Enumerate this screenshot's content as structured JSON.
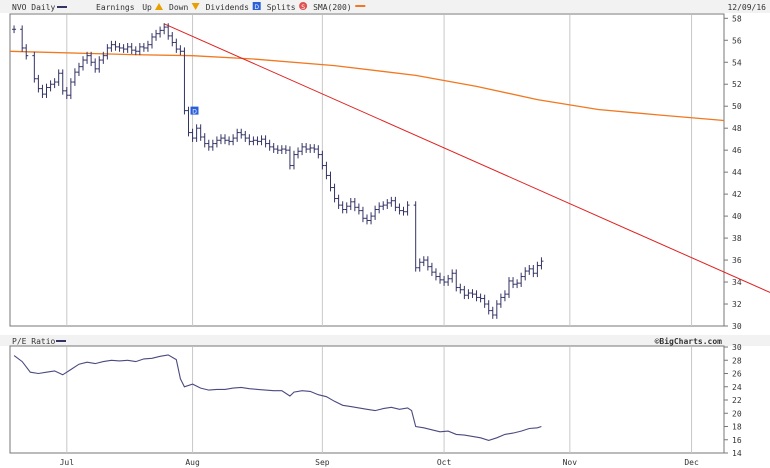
{
  "chart_data": [
    {
      "type": "ohlc",
      "symbol_label": "NVO Daily",
      "legend": [
        {
          "label": "Earnings",
          "marker": "bar-icon",
          "color": "#333366"
        },
        {
          "label": "Up",
          "marker": "triangle-up-icon",
          "color": "#e8a000"
        },
        {
          "label": "Down",
          "marker": "triangle-down-icon",
          "color": "#e8a000"
        },
        {
          "label": "Dividends",
          "marker": "dividend-badge-icon",
          "badge": "D",
          "color": "#2b5fd9"
        },
        {
          "label": "Splits",
          "marker": "split-badge-icon",
          "badge": "S",
          "color": "#e05050"
        },
        {
          "label": "SMA(200)",
          "marker": "line-icon",
          "color": "#f07820"
        }
      ],
      "date_label": "12/09/16",
      "x_labels": [
        {
          "label": "Jul",
          "day": 14
        },
        {
          "label": "Aug",
          "day": 45
        },
        {
          "label": "Sep",
          "day": 77
        },
        {
          "label": "Oct",
          "day": 107
        },
        {
          "label": "Nov",
          "day": 138
        },
        {
          "label": "Dec",
          "day": 168
        }
      ],
      "x_range": [
        0,
        176
      ],
      "y_ticks": [
        30,
        32,
        34,
        36,
        38,
        40,
        42,
        44,
        46,
        48,
        50,
        52,
        54,
        56,
        58
      ],
      "ylim": [
        30,
        58.3
      ],
      "price": [
        [
          1,
          57.0
        ],
        [
          3,
          55.3
        ],
        [
          4,
          54.6
        ],
        [
          6,
          52.5
        ],
        [
          7,
          51.6
        ],
        [
          8,
          51.1
        ],
        [
          9,
          51.7
        ],
        [
          10,
          52.0
        ],
        [
          11,
          52.2
        ],
        [
          12,
          53.0
        ],
        [
          13,
          51.4
        ],
        [
          14,
          51.0
        ],
        [
          15,
          52.2
        ],
        [
          16,
          53.1
        ],
        [
          17,
          53.6
        ],
        [
          18,
          54.2
        ],
        [
          19,
          54.6
        ],
        [
          20,
          54.0
        ],
        [
          21,
          53.4
        ],
        [
          22,
          54.2
        ],
        [
          23,
          54.6
        ],
        [
          24,
          55.3
        ],
        [
          25,
          55.6
        ],
        [
          26,
          55.4
        ],
        [
          27,
          55.3
        ],
        [
          28,
          55.2
        ],
        [
          29,
          55.4
        ],
        [
          30,
          55.1
        ],
        [
          31,
          55.0
        ],
        [
          32,
          55.4
        ],
        [
          33,
          55.3
        ],
        [
          34,
          55.6
        ],
        [
          35,
          56.3
        ],
        [
          36,
          56.6
        ],
        [
          37,
          56.9
        ],
        [
          38,
          57.2
        ],
        [
          39,
          56.4
        ],
        [
          40,
          55.8
        ],
        [
          41,
          55.2
        ],
        [
          42,
          55.0
        ],
        [
          43,
          49.6
        ],
        [
          44,
          47.6
        ],
        [
          45,
          47.1
        ],
        [
          46,
          48.0
        ],
        [
          47,
          47.2
        ],
        [
          48,
          46.6
        ],
        [
          49,
          46.3
        ],
        [
          50,
          46.6
        ],
        [
          51,
          46.9
        ],
        [
          52,
          47.1
        ],
        [
          53,
          46.9
        ],
        [
          54,
          46.8
        ],
        [
          55,
          47.1
        ],
        [
          56,
          47.6
        ],
        [
          57,
          47.4
        ],
        [
          58,
          47.1
        ],
        [
          59,
          46.8
        ],
        [
          60,
          46.9
        ],
        [
          61,
          46.8
        ],
        [
          62,
          47.0
        ],
        [
          63,
          46.6
        ],
        [
          64,
          46.3
        ],
        [
          65,
          46.1
        ],
        [
          66,
          46.0
        ],
        [
          67,
          46.1
        ],
        [
          68,
          46.0
        ],
        [
          69,
          44.6
        ],
        [
          70,
          45.6
        ],
        [
          71,
          45.9
        ],
        [
          72,
          46.3
        ],
        [
          73,
          46.1
        ],
        [
          74,
          46.2
        ],
        [
          75,
          46.1
        ],
        [
          76,
          45.6
        ],
        [
          77,
          44.6
        ],
        [
          78,
          43.7
        ],
        [
          79,
          42.6
        ],
        [
          80,
          41.6
        ],
        [
          81,
          41.0
        ],
        [
          82,
          40.6
        ],
        [
          83,
          40.9
        ],
        [
          84,
          41.3
        ],
        [
          85,
          40.8
        ],
        [
          86,
          40.5
        ],
        [
          87,
          39.8
        ],
        [
          88,
          39.6
        ],
        [
          89,
          40.0
        ],
        [
          90,
          40.6
        ],
        [
          91,
          40.9
        ],
        [
          92,
          41.0
        ],
        [
          93,
          41.2
        ],
        [
          94,
          41.4
        ],
        [
          95,
          40.8
        ],
        [
          96,
          40.5
        ],
        [
          97,
          40.4
        ],
        [
          98,
          41.0
        ],
        [
          100,
          35.3
        ],
        [
          101,
          35.8
        ],
        [
          102,
          36.0
        ],
        [
          103,
          35.4
        ],
        [
          104,
          34.9
        ],
        [
          105,
          34.5
        ],
        [
          106,
          34.2
        ],
        [
          107,
          34.0
        ],
        [
          108,
          34.3
        ],
        [
          109,
          34.8
        ],
        [
          110,
          33.5
        ],
        [
          111,
          33.3
        ],
        [
          112,
          32.8
        ],
        [
          113,
          33.0
        ],
        [
          114,
          32.9
        ],
        [
          115,
          32.6
        ],
        [
          116,
          32.5
        ],
        [
          117,
          32.0
        ],
        [
          118,
          31.4
        ],
        [
          119,
          31.0
        ],
        [
          120,
          32.0
        ],
        [
          121,
          32.6
        ],
        [
          122,
          32.9
        ],
        [
          123,
          34.1
        ],
        [
          124,
          33.8
        ],
        [
          125,
          33.9
        ],
        [
          126,
          34.5
        ],
        [
          127,
          35.0
        ],
        [
          128,
          35.2
        ],
        [
          129,
          34.8
        ],
        [
          130,
          35.5
        ],
        [
          131,
          35.9
        ]
      ],
      "sma200": [
        [
          0,
          55.0
        ],
        [
          30,
          54.7
        ],
        [
          45,
          54.6
        ],
        [
          60,
          54.3
        ],
        [
          80,
          53.7
        ],
        [
          100,
          52.8
        ],
        [
          115,
          51.8
        ],
        [
          130,
          50.6
        ],
        [
          145,
          49.7
        ],
        [
          160,
          49.2
        ],
        [
          176,
          48.7
        ]
      ],
      "trendline": [
        [
          38,
          57.5
        ],
        [
          176,
          33.6
        ]
      ],
      "dividend_marker": {
        "day": 44,
        "label": "D"
      }
    },
    {
      "type": "line",
      "label": "P/E Ratio",
      "brand": "©BigCharts.com",
      "y_ticks": [
        14,
        16,
        18,
        20,
        22,
        24,
        26,
        28,
        30
      ],
      "ylim": [
        14,
        30
      ],
      "values": [
        [
          1,
          28.7
        ],
        [
          3,
          27.8
        ],
        [
          5,
          26.2
        ],
        [
          7,
          26.0
        ],
        [
          9,
          26.2
        ],
        [
          11,
          26.4
        ],
        [
          13,
          25.8
        ],
        [
          15,
          26.6
        ],
        [
          17,
          27.4
        ],
        [
          19,
          27.7
        ],
        [
          21,
          27.5
        ],
        [
          23,
          27.8
        ],
        [
          25,
          28.0
        ],
        [
          27,
          27.9
        ],
        [
          29,
          28.0
        ],
        [
          31,
          27.8
        ],
        [
          33,
          28.2
        ],
        [
          35,
          28.3
        ],
        [
          37,
          28.6
        ],
        [
          39,
          28.8
        ],
        [
          41,
          28.1
        ],
        [
          42,
          25.2
        ],
        [
          43,
          24.0
        ],
        [
          45,
          24.4
        ],
        [
          47,
          23.8
        ],
        [
          49,
          23.5
        ],
        [
          51,
          23.6
        ],
        [
          53,
          23.6
        ],
        [
          55,
          23.8
        ],
        [
          57,
          23.9
        ],
        [
          59,
          23.7
        ],
        [
          61,
          23.6
        ],
        [
          63,
          23.5
        ],
        [
          65,
          23.4
        ],
        [
          67,
          23.4
        ],
        [
          69,
          22.6
        ],
        [
          70,
          23.2
        ],
        [
          72,
          23.4
        ],
        [
          74,
          23.3
        ],
        [
          76,
          22.8
        ],
        [
          78,
          22.5
        ],
        [
          80,
          21.8
        ],
        [
          82,
          21.2
        ],
        [
          84,
          21.0
        ],
        [
          86,
          20.8
        ],
        [
          88,
          20.6
        ],
        [
          90,
          20.4
        ],
        [
          92,
          20.7
        ],
        [
          94,
          20.9
        ],
        [
          96,
          20.6
        ],
        [
          98,
          20.8
        ],
        [
          99,
          20.4
        ],
        [
          100,
          18.0
        ],
        [
          102,
          17.8
        ],
        [
          104,
          17.5
        ],
        [
          106,
          17.2
        ],
        [
          108,
          17.3
        ],
        [
          110,
          16.8
        ],
        [
          112,
          16.7
        ],
        [
          114,
          16.5
        ],
        [
          116,
          16.3
        ],
        [
          118,
          15.9
        ],
        [
          120,
          16.3
        ],
        [
          122,
          16.8
        ],
        [
          124,
          17.0
        ],
        [
          126,
          17.3
        ],
        [
          128,
          17.7
        ],
        [
          130,
          17.8
        ],
        [
          131,
          18.0
        ]
      ]
    }
  ]
}
